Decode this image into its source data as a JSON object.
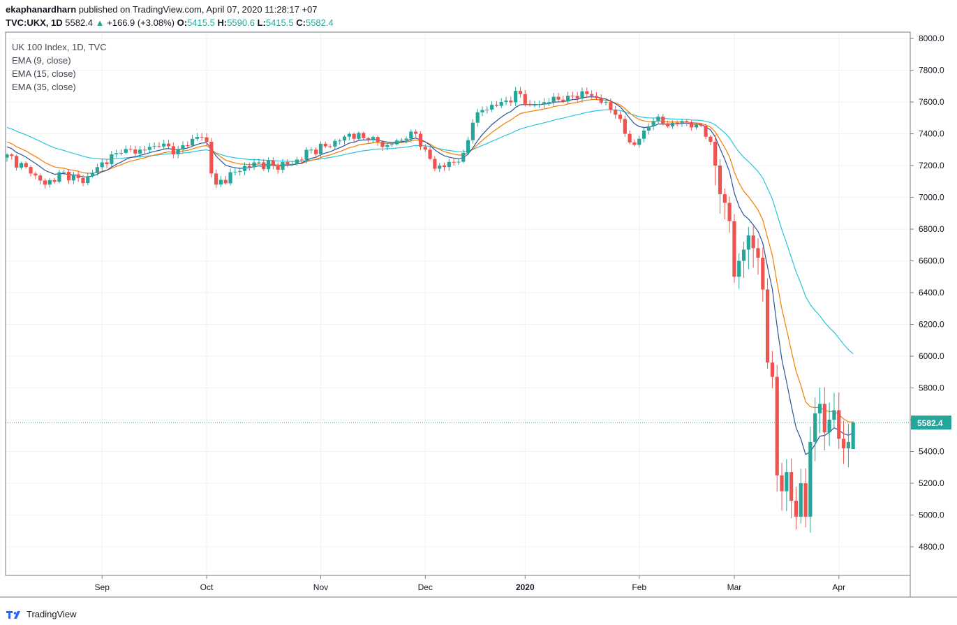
{
  "header": {
    "author": "ekaphanardharn",
    "published_text": "published on TradingView.com, April 07, 2020 11:28:17 +07",
    "symbol": "TVC:UKX, 1D",
    "last": "5582.4",
    "change": "+166.9 (+3.08%)",
    "o_label": "O:",
    "o_val": "5415.5",
    "h_label": "H:",
    "h_val": "5590.6",
    "l_label": "L:",
    "l_val": "5415.5",
    "c_label": "C:",
    "c_val": "5582.4"
  },
  "legend": [
    "UK 100 Index, 1D, TVC",
    "EMA (9, close)",
    "EMA (15, close)",
    "EMA (35, close)"
  ],
  "branding": "TradingView",
  "colors": {
    "up": "#26a69a",
    "down": "#ef5350",
    "ema9": "#2a5597",
    "ema15": "#f57c00",
    "ema35": "#26c6da",
    "grid": "#eef1f6",
    "axis": "#787b86",
    "price_tag": "#26a69a"
  },
  "chart_data": {
    "type": "candlestick",
    "title": "UK 100 Index, 1D, TVC",
    "ylim": [
      4620,
      8040
    ],
    "yticks": [
      "8000.0",
      "7800.0",
      "7600.0",
      "7400.0",
      "7200.0",
      "7000.0",
      "6800.0",
      "6600.0",
      "6400.0",
      "6200.0",
      "6000.0",
      "5800.0",
      "5600.0",
      "5400.0",
      "5200.0",
      "5000.0",
      "4800.0"
    ],
    "x_labels": [
      {
        "label": "Sep",
        "index": 20
      },
      {
        "label": "Oct",
        "index": 42
      },
      {
        "label": "Nov",
        "index": 66
      },
      {
        "label": "Dec",
        "index": 88
      },
      {
        "label": "2020",
        "index": 109,
        "bold": true
      },
      {
        "label": "Feb",
        "index": 133
      },
      {
        "label": "Mar",
        "index": 153
      },
      {
        "label": "Apr",
        "index": 175
      }
    ],
    "last_price": 5582.4,
    "last_price_label": "5582.4",
    "series": [
      {
        "name": "EMA (9, close)"
      },
      {
        "name": "EMA (15, close)"
      },
      {
        "name": "EMA (35, close)"
      }
    ]
  }
}
